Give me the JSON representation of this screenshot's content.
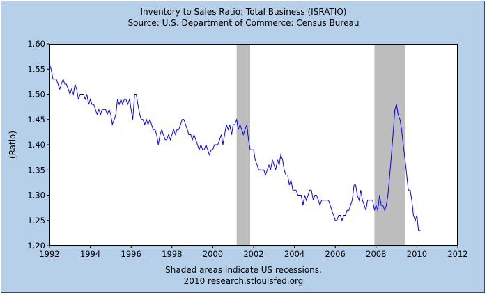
{
  "chart_data": {
    "type": "line",
    "title": "Inventory to Sales Ratio: Total Business (ISRATIO)",
    "subtitle": "Source: U.S. Department of Commerce: Census Bureau",
    "ylabel": "(Ratio)",
    "xlabel": "",
    "footnote_1": "Shaded areas indicate US recessions.",
    "footnote_2": "2010 research.stlouisfed.org",
    "xlim": [
      1992,
      2012
    ],
    "ylim": [
      1.2,
      1.6
    ],
    "x_ticks": [
      {
        "value": 1992,
        "label": "1992"
      },
      {
        "value": 1994,
        "label": "1994"
      },
      {
        "value": 1996,
        "label": "1996"
      },
      {
        "value": 1998,
        "label": "1998"
      },
      {
        "value": 2000,
        "label": "2000"
      },
      {
        "value": 2002,
        "label": "2002"
      },
      {
        "value": 2004,
        "label": "2004"
      },
      {
        "value": 2006,
        "label": "2006"
      },
      {
        "value": 2008,
        "label": "2008"
      },
      {
        "value": 2010,
        "label": "2010"
      },
      {
        "value": 2012,
        "label": "2012"
      }
    ],
    "y_ticks": [
      {
        "value": 1.2,
        "label": "1.20"
      },
      {
        "value": 1.25,
        "label": "1.25"
      },
      {
        "value": 1.3,
        "label": "1.30"
      },
      {
        "value": 1.35,
        "label": "1.35"
      },
      {
        "value": 1.4,
        "label": "1.40"
      },
      {
        "value": 1.45,
        "label": "1.45"
      },
      {
        "value": 1.5,
        "label": "1.50"
      },
      {
        "value": 1.55,
        "label": "1.55"
      },
      {
        "value": 1.6,
        "label": "1.60"
      }
    ],
    "grid": false,
    "recessions": [
      {
        "start": 2001.17,
        "end": 2001.83
      },
      {
        "start": 2007.92,
        "end": 2009.42
      }
    ],
    "colors": {
      "line": "#0000ff",
      "recession": "#bdbdbd",
      "background": "#b7d0e9",
      "plot_background": "#ffffff"
    },
    "series": [
      {
        "points": [
          [
            1992.0,
            1.56
          ],
          [
            1992.08,
            1.55
          ],
          [
            1992.17,
            1.53
          ],
          [
            1992.25,
            1.53
          ],
          [
            1992.33,
            1.53
          ],
          [
            1992.42,
            1.52
          ],
          [
            1992.5,
            1.51
          ],
          [
            1992.58,
            1.52
          ],
          [
            1992.67,
            1.53
          ],
          [
            1992.75,
            1.52
          ],
          [
            1992.83,
            1.52
          ],
          [
            1992.92,
            1.51
          ],
          [
            1993.0,
            1.5
          ],
          [
            1993.08,
            1.51
          ],
          [
            1993.17,
            1.5
          ],
          [
            1993.25,
            1.52
          ],
          [
            1993.33,
            1.51
          ],
          [
            1993.42,
            1.49
          ],
          [
            1993.5,
            1.5
          ],
          [
            1993.58,
            1.5
          ],
          [
            1993.67,
            1.5
          ],
          [
            1993.75,
            1.49
          ],
          [
            1993.83,
            1.5
          ],
          [
            1993.92,
            1.48
          ],
          [
            1994.0,
            1.49
          ],
          [
            1994.08,
            1.48
          ],
          [
            1994.17,
            1.48
          ],
          [
            1994.25,
            1.47
          ],
          [
            1994.33,
            1.46
          ],
          [
            1994.42,
            1.47
          ],
          [
            1994.5,
            1.46
          ],
          [
            1994.58,
            1.47
          ],
          [
            1994.67,
            1.47
          ],
          [
            1994.75,
            1.47
          ],
          [
            1994.83,
            1.46
          ],
          [
            1994.92,
            1.47
          ],
          [
            1995.0,
            1.46
          ],
          [
            1995.08,
            1.44
          ],
          [
            1995.17,
            1.45
          ],
          [
            1995.25,
            1.46
          ],
          [
            1995.33,
            1.49
          ],
          [
            1995.42,
            1.48
          ],
          [
            1995.5,
            1.49
          ],
          [
            1995.58,
            1.48
          ],
          [
            1995.67,
            1.49
          ],
          [
            1995.75,
            1.49
          ],
          [
            1995.83,
            1.48
          ],
          [
            1995.92,
            1.49
          ],
          [
            1996.0,
            1.47
          ],
          [
            1996.08,
            1.45
          ],
          [
            1996.17,
            1.5
          ],
          [
            1996.25,
            1.5
          ],
          [
            1996.33,
            1.48
          ],
          [
            1996.42,
            1.46
          ],
          [
            1996.5,
            1.45
          ],
          [
            1996.58,
            1.45
          ],
          [
            1996.67,
            1.44
          ],
          [
            1996.75,
            1.45
          ],
          [
            1996.83,
            1.44
          ],
          [
            1996.92,
            1.45
          ],
          [
            1997.0,
            1.44
          ],
          [
            1997.08,
            1.43
          ],
          [
            1997.17,
            1.43
          ],
          [
            1997.25,
            1.42
          ],
          [
            1997.33,
            1.4
          ],
          [
            1997.42,
            1.42
          ],
          [
            1997.5,
            1.43
          ],
          [
            1997.58,
            1.42
          ],
          [
            1997.67,
            1.41
          ],
          [
            1997.75,
            1.41
          ],
          [
            1997.83,
            1.42
          ],
          [
            1997.92,
            1.41
          ],
          [
            1998.0,
            1.42
          ],
          [
            1998.08,
            1.43
          ],
          [
            1998.17,
            1.42
          ],
          [
            1998.25,
            1.43
          ],
          [
            1998.33,
            1.43
          ],
          [
            1998.42,
            1.44
          ],
          [
            1998.5,
            1.45
          ],
          [
            1998.58,
            1.45
          ],
          [
            1998.67,
            1.44
          ],
          [
            1998.75,
            1.43
          ],
          [
            1998.83,
            1.42
          ],
          [
            1998.92,
            1.42
          ],
          [
            1999.0,
            1.41
          ],
          [
            1999.08,
            1.42
          ],
          [
            1999.17,
            1.41
          ],
          [
            1999.25,
            1.4
          ],
          [
            1999.33,
            1.39
          ],
          [
            1999.42,
            1.4
          ],
          [
            1999.5,
            1.39
          ],
          [
            1999.58,
            1.39
          ],
          [
            1999.67,
            1.4
          ],
          [
            1999.75,
            1.39
          ],
          [
            1999.83,
            1.38
          ],
          [
            1999.92,
            1.39
          ],
          [
            2000.0,
            1.39
          ],
          [
            2000.08,
            1.4
          ],
          [
            2000.17,
            1.4
          ],
          [
            2000.25,
            1.4
          ],
          [
            2000.33,
            1.41
          ],
          [
            2000.42,
            1.42
          ],
          [
            2000.5,
            1.4
          ],
          [
            2000.58,
            1.42
          ],
          [
            2000.67,
            1.44
          ],
          [
            2000.75,
            1.43
          ],
          [
            2000.83,
            1.44
          ],
          [
            2000.92,
            1.42
          ],
          [
            2001.0,
            1.44
          ],
          [
            2001.08,
            1.44
          ],
          [
            2001.17,
            1.45
          ],
          [
            2001.25,
            1.43
          ],
          [
            2001.33,
            1.44
          ],
          [
            2001.42,
            1.43
          ],
          [
            2001.5,
            1.42
          ],
          [
            2001.58,
            1.43
          ],
          [
            2001.67,
            1.44
          ],
          [
            2001.75,
            1.41
          ],
          [
            2001.83,
            1.39
          ],
          [
            2001.92,
            1.39
          ],
          [
            2002.0,
            1.39
          ],
          [
            2002.08,
            1.37
          ],
          [
            2002.17,
            1.36
          ],
          [
            2002.25,
            1.35
          ],
          [
            2002.33,
            1.35
          ],
          [
            2002.42,
            1.35
          ],
          [
            2002.5,
            1.35
          ],
          [
            2002.58,
            1.34
          ],
          [
            2002.67,
            1.35
          ],
          [
            2002.75,
            1.36
          ],
          [
            2002.83,
            1.35
          ],
          [
            2002.92,
            1.37
          ],
          [
            2003.0,
            1.36
          ],
          [
            2003.08,
            1.35
          ],
          [
            2003.17,
            1.37
          ],
          [
            2003.25,
            1.36
          ],
          [
            2003.33,
            1.38
          ],
          [
            2003.42,
            1.37
          ],
          [
            2003.5,
            1.35
          ],
          [
            2003.58,
            1.34
          ],
          [
            2003.67,
            1.34
          ],
          [
            2003.75,
            1.32
          ],
          [
            2003.83,
            1.33
          ],
          [
            2003.92,
            1.31
          ],
          [
            2004.0,
            1.31
          ],
          [
            2004.08,
            1.31
          ],
          [
            2004.17,
            1.3
          ],
          [
            2004.25,
            1.3
          ],
          [
            2004.33,
            1.3
          ],
          [
            2004.42,
            1.28
          ],
          [
            2004.5,
            1.3
          ],
          [
            2004.58,
            1.29
          ],
          [
            2004.67,
            1.3
          ],
          [
            2004.75,
            1.31
          ],
          [
            2004.83,
            1.31
          ],
          [
            2004.92,
            1.29
          ],
          [
            2005.0,
            1.3
          ],
          [
            2005.08,
            1.3
          ],
          [
            2005.17,
            1.29
          ],
          [
            2005.25,
            1.28
          ],
          [
            2005.33,
            1.29
          ],
          [
            2005.42,
            1.29
          ],
          [
            2005.5,
            1.29
          ],
          [
            2005.58,
            1.29
          ],
          [
            2005.67,
            1.29
          ],
          [
            2005.75,
            1.28
          ],
          [
            2005.83,
            1.27
          ],
          [
            2005.92,
            1.26
          ],
          [
            2006.0,
            1.25
          ],
          [
            2006.08,
            1.25
          ],
          [
            2006.17,
            1.26
          ],
          [
            2006.25,
            1.26
          ],
          [
            2006.33,
            1.25
          ],
          [
            2006.42,
            1.26
          ],
          [
            2006.5,
            1.26
          ],
          [
            2006.58,
            1.27
          ],
          [
            2006.67,
            1.27
          ],
          [
            2006.75,
            1.28
          ],
          [
            2006.83,
            1.29
          ],
          [
            2006.92,
            1.32
          ],
          [
            2007.0,
            1.32
          ],
          [
            2007.08,
            1.3
          ],
          [
            2007.17,
            1.29
          ],
          [
            2007.25,
            1.31
          ],
          [
            2007.33,
            1.29
          ],
          [
            2007.42,
            1.28
          ],
          [
            2007.5,
            1.27
          ],
          [
            2007.58,
            1.29
          ],
          [
            2007.67,
            1.29
          ],
          [
            2007.75,
            1.29
          ],
          [
            2007.83,
            1.29
          ],
          [
            2007.92,
            1.27
          ],
          [
            2008.0,
            1.28
          ],
          [
            2008.08,
            1.27
          ],
          [
            2008.17,
            1.3
          ],
          [
            2008.25,
            1.28
          ],
          [
            2008.33,
            1.28
          ],
          [
            2008.42,
            1.27
          ],
          [
            2008.5,
            1.28
          ],
          [
            2008.58,
            1.3
          ],
          [
            2008.67,
            1.34
          ],
          [
            2008.75,
            1.38
          ],
          [
            2008.83,
            1.42
          ],
          [
            2008.92,
            1.47
          ],
          [
            2009.0,
            1.48
          ],
          [
            2009.08,
            1.46
          ],
          [
            2009.17,
            1.45
          ],
          [
            2009.25,
            1.43
          ],
          [
            2009.33,
            1.4
          ],
          [
            2009.42,
            1.37
          ],
          [
            2009.5,
            1.34
          ],
          [
            2009.58,
            1.31
          ],
          [
            2009.67,
            1.31
          ],
          [
            2009.75,
            1.29
          ],
          [
            2009.83,
            1.26
          ],
          [
            2009.92,
            1.25
          ],
          [
            2010.0,
            1.26
          ],
          [
            2010.08,
            1.23
          ],
          [
            2010.17,
            1.23
          ]
        ]
      }
    ]
  }
}
